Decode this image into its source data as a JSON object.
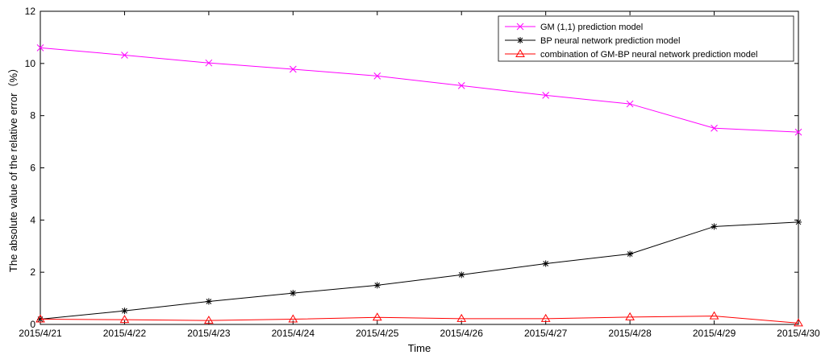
{
  "chart_data": {
    "type": "line",
    "title": "",
    "xlabel": "Time",
    "ylabel": "The absolute value of the relative error（%）",
    "categories": [
      "2015/4/21",
      "2015/4/22",
      "2015/4/23",
      "2015/4/24",
      "2015/4/25",
      "2015/4/26",
      "2015/4/27",
      "2015/4/28",
      "2015/4/29",
      "2015/4/30"
    ],
    "yticks": [
      "0",
      "2",
      "4",
      "6",
      "8",
      "10",
      "12"
    ],
    "ylim": [
      0,
      12
    ],
    "grid": false,
    "legend_position": "top-right",
    "series": [
      {
        "name": "GM (1,1) prediction model",
        "color": "#ff00ff",
        "marker": "x",
        "values": [
          10.6,
          10.32,
          10.02,
          9.78,
          9.52,
          9.15,
          8.78,
          8.45,
          7.52,
          7.37
        ]
      },
      {
        "name": "BP neural network prediction model",
        "color": "#000000",
        "marker": "asterisk",
        "values": [
          0.2,
          0.52,
          0.88,
          1.2,
          1.5,
          1.9,
          2.33,
          2.7,
          3.75,
          3.92
        ]
      },
      {
        "name": "combination of GM-BP neural network prediction model",
        "color": "#ff0000",
        "marker": "triangle",
        "values": [
          0.2,
          0.18,
          0.15,
          0.2,
          0.27,
          0.22,
          0.22,
          0.28,
          0.32,
          0.05
        ]
      }
    ]
  }
}
